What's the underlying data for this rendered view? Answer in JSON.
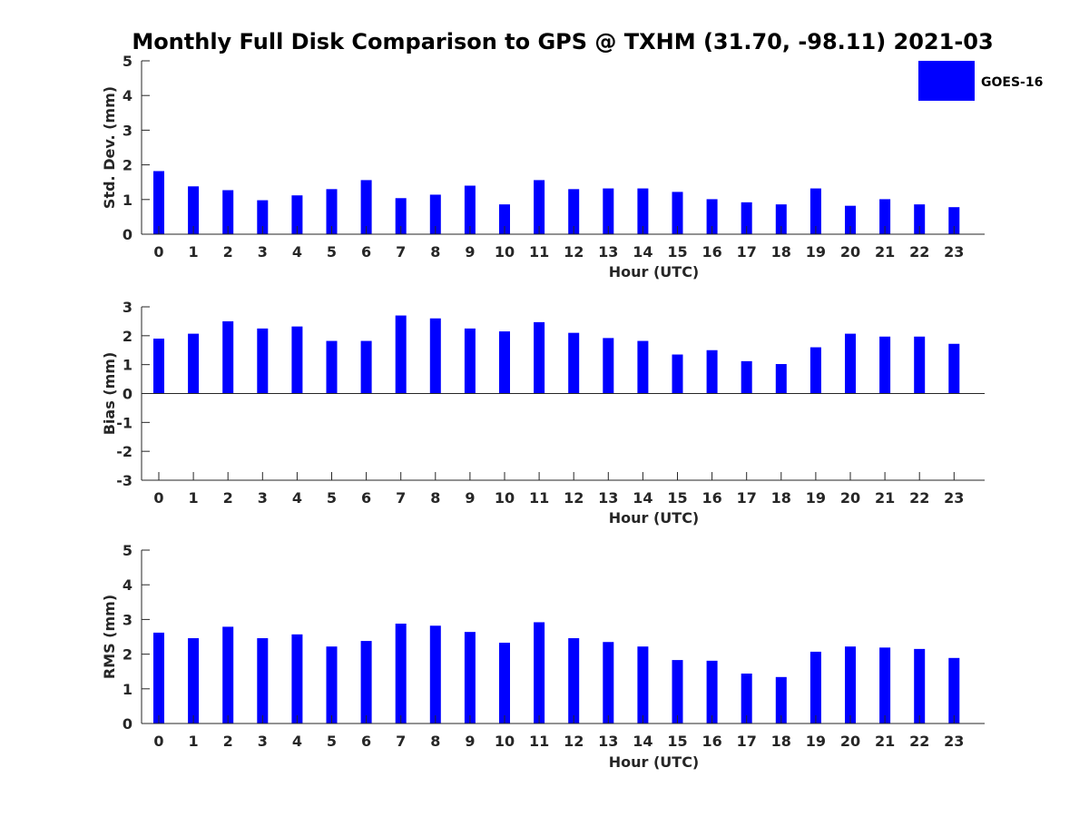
{
  "title": "Monthly Full Disk Comparison to GPS @ TXHM (31.70, -98.11) 2021-03",
  "legend": {
    "label": "GOES-16",
    "color": "#0000ff",
    "placement": "top-right"
  },
  "chart_data": [
    {
      "type": "bar",
      "name": "std_dev",
      "ylabel": "Std. Dev. (mm)",
      "xlabel": "Hour (UTC)",
      "ylim": [
        0,
        5
      ],
      "yticks": [
        "0",
        "1",
        "2",
        "3",
        "4",
        "5"
      ],
      "categories": [
        "0",
        "1",
        "2",
        "3",
        "4",
        "5",
        "6",
        "7",
        "8",
        "9",
        "10",
        "11",
        "12",
        "13",
        "14",
        "15",
        "16",
        "17",
        "18",
        "19",
        "20",
        "21",
        "22",
        "23"
      ],
      "series": [
        {
          "name": "GOES-16",
          "color": "#0000ff",
          "values": [
            1.82,
            1.38,
            1.27,
            0.98,
            1.12,
            1.3,
            1.56,
            1.04,
            1.14,
            1.4,
            0.86,
            1.56,
            1.3,
            1.32,
            1.32,
            1.22,
            1.01,
            0.92,
            0.86,
            1.32,
            0.82,
            1.01,
            0.86,
            0.78
          ]
        }
      ]
    },
    {
      "type": "bar",
      "name": "bias",
      "ylabel": "Bias (mm)",
      "xlabel": "Hour (UTC)",
      "ylim": [
        -3,
        3
      ],
      "yticks": [
        "-3",
        "-2",
        "-1",
        "0",
        "1",
        "2",
        "3"
      ],
      "categories": [
        "0",
        "1",
        "2",
        "3",
        "4",
        "5",
        "6",
        "7",
        "8",
        "9",
        "10",
        "11",
        "12",
        "13",
        "14",
        "15",
        "16",
        "17",
        "18",
        "19",
        "20",
        "21",
        "22",
        "23"
      ],
      "series": [
        {
          "name": "GOES-16",
          "color": "#0000ff",
          "values": [
            1.9,
            2.07,
            2.5,
            2.25,
            2.32,
            1.82,
            1.82,
            2.7,
            2.6,
            2.25,
            2.15,
            2.47,
            2.1,
            1.92,
            1.82,
            1.35,
            1.5,
            1.12,
            1.02,
            1.6,
            2.07,
            1.97,
            1.97,
            1.72
          ]
        }
      ]
    },
    {
      "type": "bar",
      "name": "rms",
      "ylabel": "RMS (mm)",
      "xlabel": "Hour (UTC)",
      "ylim": [
        0,
        5
      ],
      "yticks": [
        "0",
        "1",
        "2",
        "3",
        "4",
        "5"
      ],
      "categories": [
        "0",
        "1",
        "2",
        "3",
        "4",
        "5",
        "6",
        "7",
        "8",
        "9",
        "10",
        "11",
        "12",
        "13",
        "14",
        "15",
        "16",
        "17",
        "18",
        "19",
        "20",
        "21",
        "22",
        "23"
      ],
      "series": [
        {
          "name": "GOES-16",
          "color": "#0000ff",
          "values": [
            2.62,
            2.46,
            2.79,
            2.46,
            2.57,
            2.22,
            2.38,
            2.88,
            2.82,
            2.64,
            2.33,
            2.92,
            2.46,
            2.35,
            2.22,
            1.83,
            1.81,
            1.44,
            1.34,
            2.07,
            2.22,
            2.19,
            2.15,
            1.89
          ]
        }
      ]
    }
  ]
}
